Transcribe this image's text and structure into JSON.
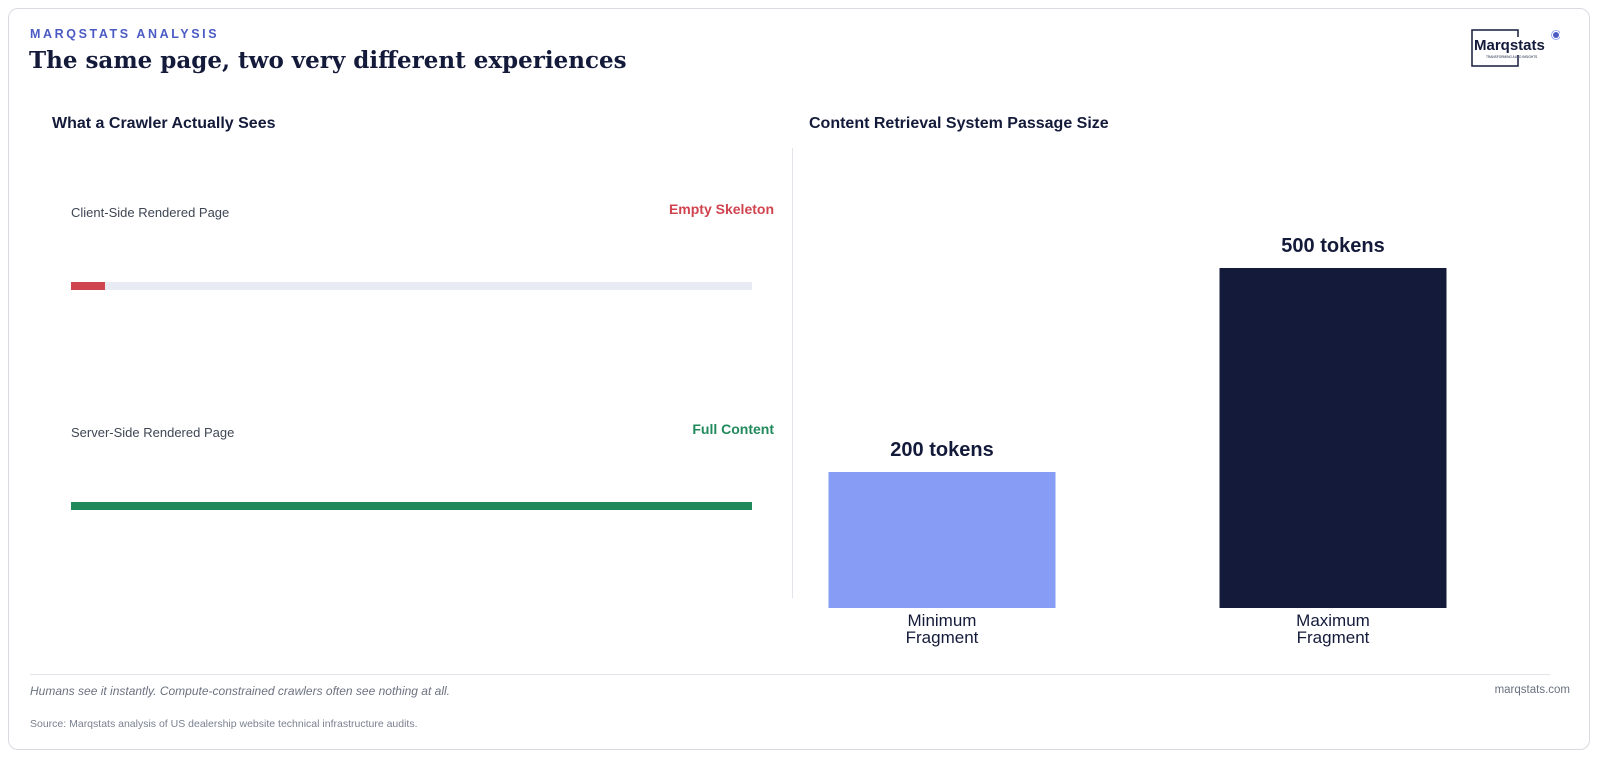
{
  "header": {
    "eyebrow": "MARQSTATS ANALYSIS",
    "title": "The same page, two very different experiences",
    "logo_text": "Marqstats",
    "logo_tagline": "TRANSFORMING AUTO INSIGHTS"
  },
  "left_panel": {
    "title": "What a Crawler Actually Sees",
    "rows": [
      {
        "label": "Client-Side Rendered Page",
        "status": "Empty Skeleton",
        "fill_fraction": 0.05,
        "color": "#d04450"
      },
      {
        "label": "Server-Side Rendered Page",
        "status": "Full Content",
        "fill_fraction": 1.0,
        "color": "#218a5c"
      }
    ]
  },
  "chart_data": {
    "type": "bar",
    "title": "Content Retrieval System Passage Size",
    "categories": [
      "Minimum Fragment",
      "Maximum Fragment"
    ],
    "category_lines": [
      [
        "Minimum",
        "Fragment"
      ],
      [
        "Maximum",
        "Fragment"
      ]
    ],
    "values": [
      200,
      500
    ],
    "value_labels": [
      "200 tokens",
      "500 tokens"
    ],
    "colors": [
      "#869cf5",
      "#141b3a"
    ],
    "ylim": [
      0,
      600
    ],
    "grid": false
  },
  "footer": {
    "note": "Humans see it instantly. Compute-constrained crawlers often see nothing at all.",
    "site": "marqstats.com",
    "source": "Source: Marqstats analysis of US dealership website technical infrastructure audits."
  },
  "colors": {
    "accent": "#4b5bc4",
    "navy": "#141b3a",
    "danger": "#d04450",
    "success": "#218a5c"
  }
}
